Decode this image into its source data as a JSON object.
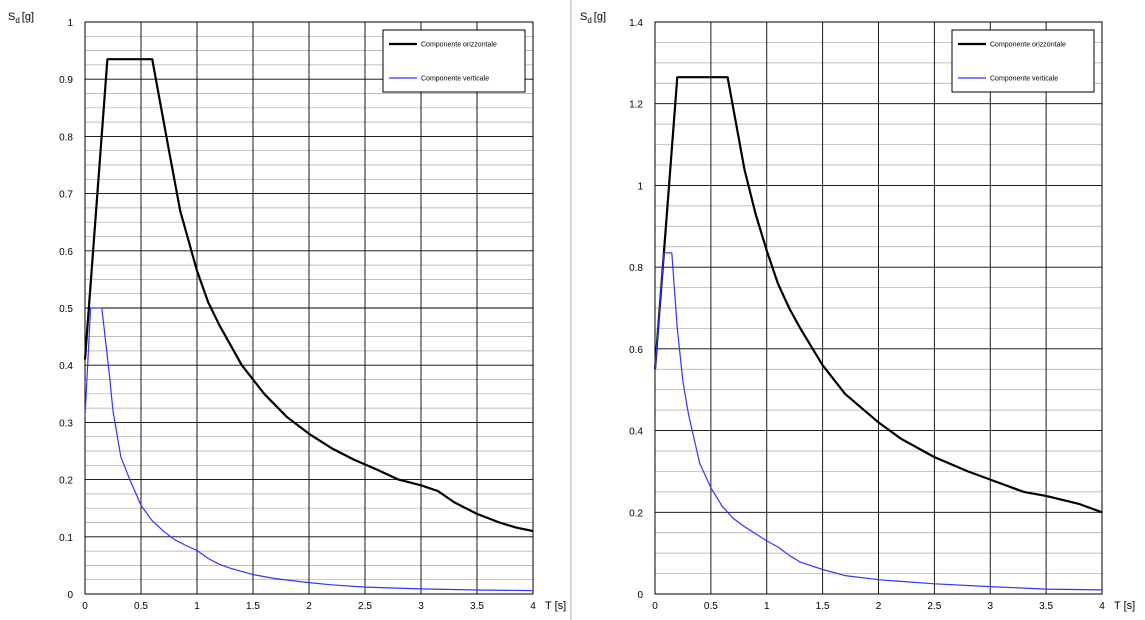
{
  "chart_data": [
    {
      "type": "line",
      "ylabel_main": "S",
      "ylabel_sub": "d",
      "ylabel_unit": "[g]",
      "xlabel": "T  [s]",
      "xlim": [
        0,
        4
      ],
      "ylim": [
        0,
        1
      ],
      "grid": true,
      "legend_position": "top-right",
      "x_ticks": [
        "0",
        "0.5",
        "1",
        "1.5",
        "2",
        "2.5",
        "3",
        "3.5",
        "4"
      ],
      "y_ticks": [
        "0",
        "0.1",
        "0.2",
        "0.3",
        "0.4",
        "0.5",
        "0.6",
        "0.7",
        "0.8",
        "0.9",
        "1"
      ],
      "series": [
        {
          "name": "Componente orizzontale",
          "color": "#000000",
          "points": [
            [
              0,
              0.41
            ],
            [
              0.2,
              0.935
            ],
            [
              0.6,
              0.935
            ],
            [
              0.75,
              0.775
            ],
            [
              0.85,
              0.67
            ],
            [
              1,
              0.565
            ],
            [
              1.1,
              0.51
            ],
            [
              1.2,
              0.47
            ],
            [
              1.4,
              0.4
            ],
            [
              1.6,
              0.35
            ],
            [
              1.8,
              0.31
            ],
            [
              2,
              0.28
            ],
            [
              2.2,
              0.255
            ],
            [
              2.4,
              0.235
            ],
            [
              2.6,
              0.218
            ],
            [
              2.8,
              0.2
            ],
            [
              3,
              0.19
            ],
            [
              3.15,
              0.18
            ],
            [
              3.3,
              0.16
            ],
            [
              3.5,
              0.14
            ],
            [
              3.7,
              0.125
            ],
            [
              3.85,
              0.116
            ],
            [
              4,
              0.11
            ]
          ]
        },
        {
          "name": "Componente verticale",
          "color": "#3333ff",
          "points": [
            [
              0,
              0.31
            ],
            [
              0.05,
              0.5
            ],
            [
              0.15,
              0.5
            ],
            [
              0.22,
              0.38
            ],
            [
              0.25,
              0.32
            ],
            [
              0.32,
              0.24
            ],
            [
              0.4,
              0.2
            ],
            [
              0.5,
              0.155
            ],
            [
              0.6,
              0.128
            ],
            [
              0.7,
              0.11
            ],
            [
              0.8,
              0.095
            ],
            [
              0.9,
              0.085
            ],
            [
              1,
              0.076
            ],
            [
              1.1,
              0.062
            ],
            [
              1.2,
              0.052
            ],
            [
              1.3,
              0.045
            ],
            [
              1.5,
              0.034
            ],
            [
              1.7,
              0.027
            ],
            [
              2,
              0.02
            ],
            [
              2.2,
              0.016
            ],
            [
              2.5,
              0.012
            ],
            [
              3,
              0.009
            ],
            [
              3.5,
              0.007
            ],
            [
              4,
              0.006
            ]
          ]
        }
      ]
    },
    {
      "type": "line",
      "ylabel_main": "S",
      "ylabel_sub": "d",
      "ylabel_unit": "[g]",
      "xlabel": "T  [s]",
      "xlim": [
        0,
        4
      ],
      "ylim": [
        0,
        1.4
      ],
      "grid": true,
      "legend_position": "top-right",
      "x_ticks": [
        "0",
        "0.5",
        "1",
        "1.5",
        "2",
        "2.5",
        "3",
        "3.5",
        "4"
      ],
      "y_ticks": [
        "0",
        "0.2",
        "0.4",
        "0.6",
        "0.8",
        "1",
        "1.2",
        "1.4"
      ],
      "series": [
        {
          "name": "Componente orizzontale",
          "color": "#000000",
          "points": [
            [
              0,
              0.55
            ],
            [
              0.2,
              1.265
            ],
            [
              0.65,
              1.265
            ],
            [
              0.8,
              1.04
            ],
            [
              0.9,
              0.93
            ],
            [
              1,
              0.84
            ],
            [
              1.1,
              0.76
            ],
            [
              1.2,
              0.7
            ],
            [
              1.3,
              0.65
            ],
            [
              1.5,
              0.56
            ],
            [
              1.7,
              0.49
            ],
            [
              2,
              0.42
            ],
            [
              2.2,
              0.38
            ],
            [
              2.5,
              0.335
            ],
            [
              2.8,
              0.3
            ],
            [
              3,
              0.28
            ],
            [
              3.3,
              0.25
            ],
            [
              3.5,
              0.24
            ],
            [
              3.8,
              0.22
            ],
            [
              4,
              0.2
            ]
          ]
        },
        {
          "name": "Componente verticale",
          "color": "#3333ff",
          "points": [
            [
              0,
              0.55
            ],
            [
              0.08,
              0.835
            ],
            [
              0.15,
              0.835
            ],
            [
              0.2,
              0.65
            ],
            [
              0.25,
              0.52
            ],
            [
              0.3,
              0.44
            ],
            [
              0.35,
              0.38
            ],
            [
              0.4,
              0.32
            ],
            [
              0.5,
              0.26
            ],
            [
              0.6,
              0.215
            ],
            [
              0.7,
              0.185
            ],
            [
              0.8,
              0.165
            ],
            [
              1,
              0.13
            ],
            [
              1.1,
              0.115
            ],
            [
              1.2,
              0.095
            ],
            [
              1.3,
              0.078
            ],
            [
              1.5,
              0.06
            ],
            [
              1.7,
              0.045
            ],
            [
              2,
              0.035
            ],
            [
              2.5,
              0.025
            ],
            [
              3,
              0.018
            ],
            [
              3.5,
              0.012
            ],
            [
              4,
              0.01
            ]
          ]
        }
      ]
    }
  ]
}
